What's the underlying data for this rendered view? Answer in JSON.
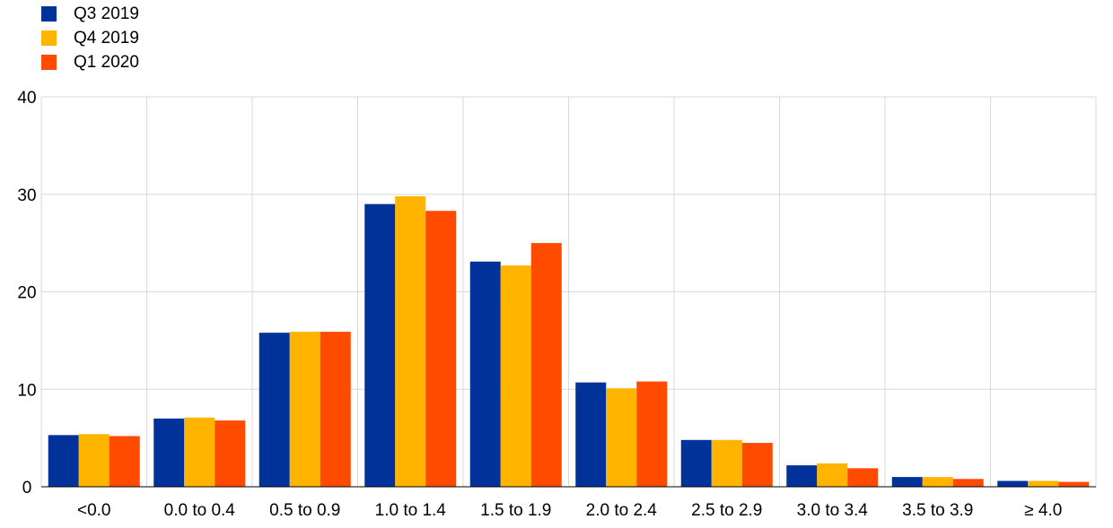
{
  "chart_data": {
    "type": "bar",
    "title": "",
    "xlabel": "",
    "ylabel": "",
    "ylim": [
      0,
      40
    ],
    "yticks": [
      0,
      10,
      20,
      30,
      40
    ],
    "grid": true,
    "legend_position": "top-left",
    "categories": [
      "<0.0",
      "0.0 to 0.4",
      "0.5 to 0.9",
      "1.0 to 1.4",
      "1.5 to 1.9",
      "2.0 to 2.4",
      "2.5 to 2.9",
      "3.0 to 3.4",
      "3.5 to 3.9",
      "≥ 4.0"
    ],
    "series": [
      {
        "name": "Q3 2019",
        "color": "#003299",
        "values": [
          5.3,
          7.0,
          15.8,
          29.0,
          23.1,
          10.7,
          4.8,
          2.2,
          1.0,
          0.6
        ]
      },
      {
        "name": "Q4 2019",
        "color": "#FFB400",
        "values": [
          5.4,
          7.1,
          15.9,
          29.8,
          22.7,
          10.1,
          4.8,
          2.4,
          1.0,
          0.6
        ]
      },
      {
        "name": "Q1 2020",
        "color": "#FF4B00",
        "values": [
          5.2,
          6.8,
          15.9,
          28.3,
          25.0,
          10.8,
          4.5,
          1.9,
          0.8,
          0.5
        ]
      }
    ]
  }
}
